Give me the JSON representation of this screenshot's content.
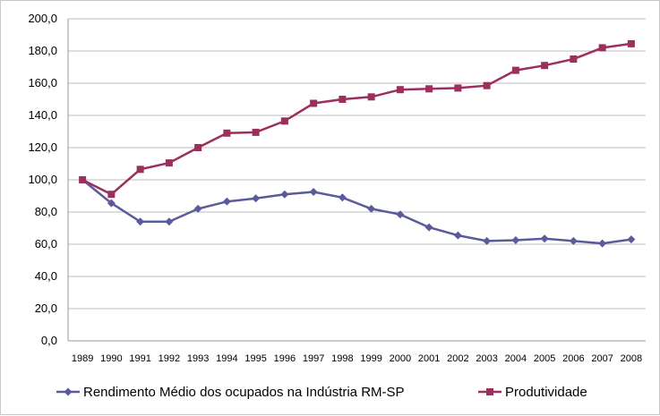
{
  "chart_data": {
    "type": "line",
    "categories": [
      "1989",
      "1990",
      "1991",
      "1992",
      "1993",
      "1994",
      "1995",
      "1996",
      "1997",
      "1998",
      "1999",
      "2000",
      "2001",
      "2002",
      "2003",
      "2004",
      "2005",
      "2006",
      "2007",
      "2008"
    ],
    "ylim": [
      0,
      200
    ],
    "yticks": [
      "0,0",
      "20,0",
      "40,0",
      "60,0",
      "80,0",
      "100,0",
      "120,0",
      "140,0",
      "160,0",
      "180,0",
      "200,0"
    ],
    "ytick_values": [
      0,
      20,
      40,
      60,
      80,
      100,
      120,
      140,
      160,
      180,
      200
    ],
    "grid": true,
    "legend_position": "bottom",
    "series": [
      {
        "name": "Rendimento Médio dos ocupados na Indústria RM-SP",
        "color": "#5b5b9c",
        "marker": "diamond",
        "values": [
          100,
          85.5,
          74,
          74,
          82,
          86.5,
          88.5,
          91,
          92.5,
          89,
          82,
          78.5,
          70.5,
          65.5,
          62,
          62.5,
          63.5,
          62,
          60.5,
          63
        ]
      },
      {
        "name": "Produtividade",
        "color": "#9c2f5d",
        "marker": "square",
        "values": [
          100,
          91,
          106.5,
          110.5,
          120,
          129,
          129.5,
          136.5,
          147.5,
          150,
          151.5,
          156,
          156.5,
          157,
          158.5,
          168,
          171,
          175,
          182,
          184.5
        ]
      }
    ]
  }
}
